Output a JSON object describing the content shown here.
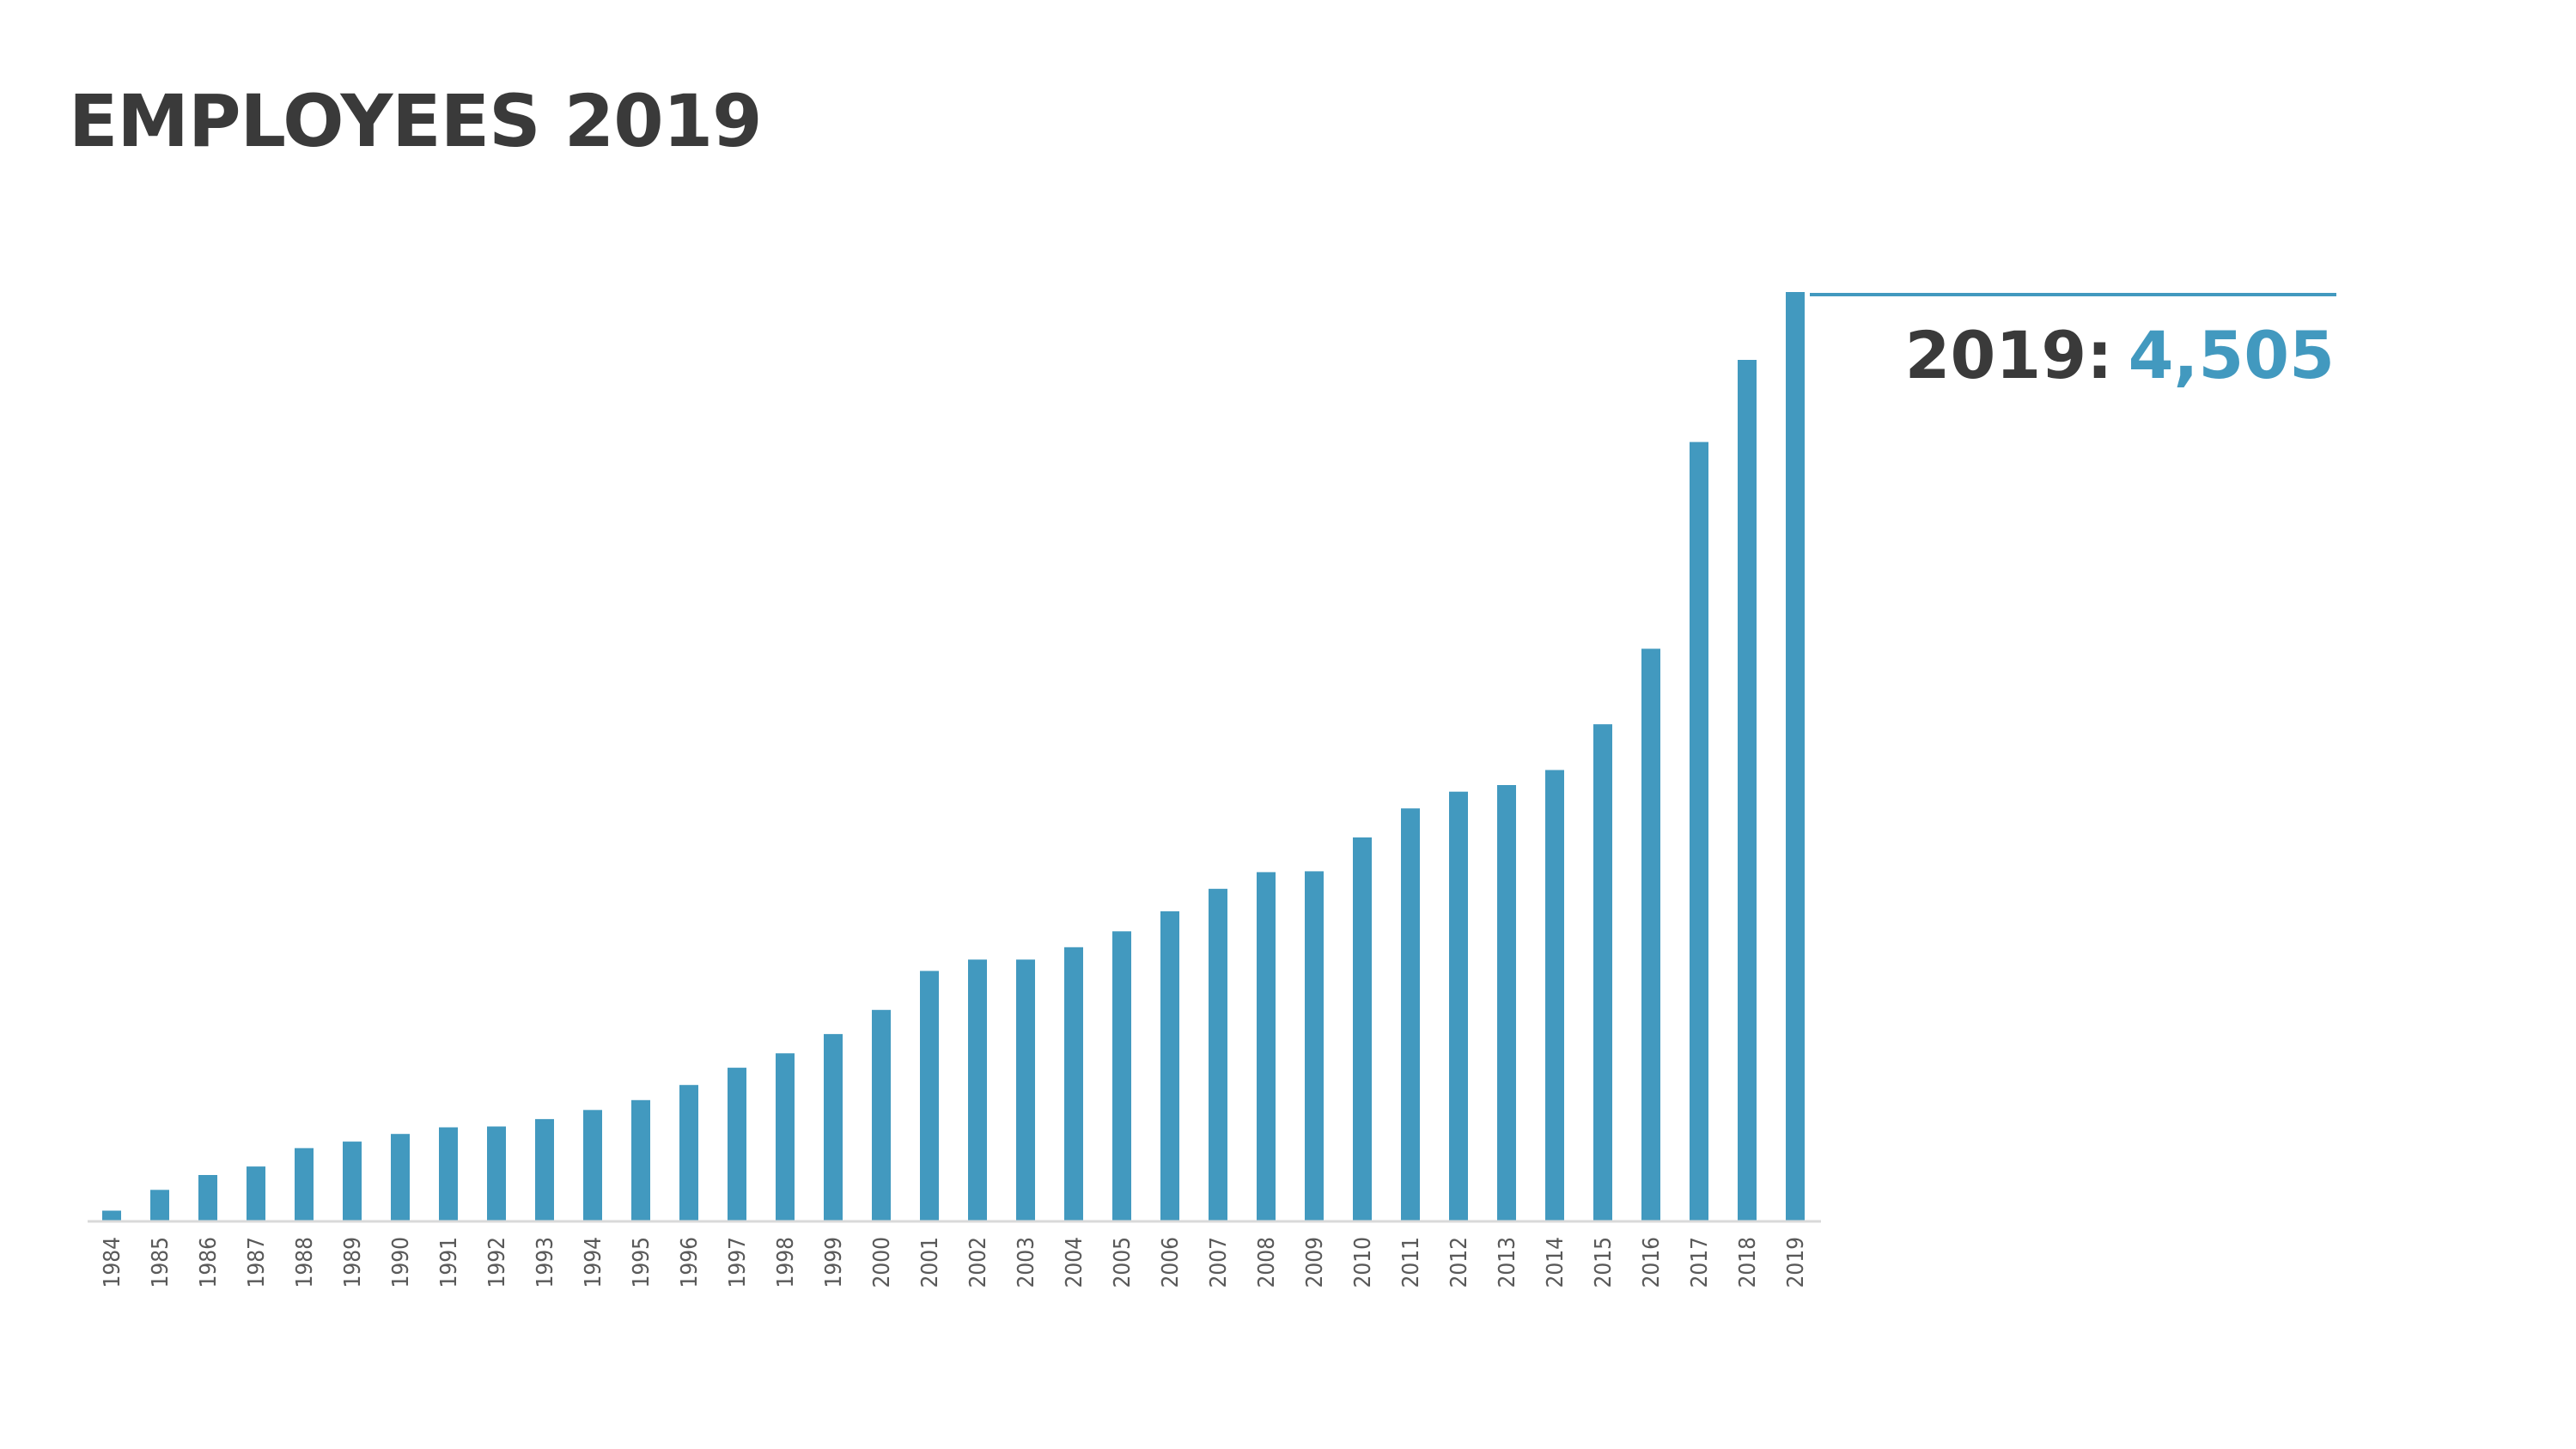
{
  "title": "EMPLOYEES 2019",
  "colors": {
    "bar": "#4299bf",
    "text": "#3a3a3a",
    "tick": "#595959",
    "axis": "#d9d9d9"
  },
  "callout": {
    "year_label": "2019:",
    "value_label": "4,505"
  },
  "chart_data": {
    "type": "bar",
    "title": "EMPLOYEES 2019",
    "xlabel": "",
    "ylabel": "",
    "ylim": [
      0,
      4505
    ],
    "grid": false,
    "legend": "none",
    "categories": [
      "1984",
      "1985",
      "1986",
      "1987",
      "1988",
      "1989",
      "1990",
      "1991",
      "1992",
      "1993",
      "1994",
      "1995",
      "1996",
      "1997",
      "1998",
      "1999",
      "2000",
      "2001",
      "2002",
      "2003",
      "2004",
      "2005",
      "2006",
      "2007",
      "2008",
      "2009",
      "2010",
      "2011",
      "2012",
      "2013",
      "2014",
      "2015",
      "2016",
      "2017",
      "2018",
      "2019"
    ],
    "values": [
      52,
      153,
      225,
      266,
      355,
      387,
      424,
      456,
      460,
      496,
      540,
      588,
      661,
      745,
      815,
      908,
      1025,
      1214,
      1269,
      1269,
      1329,
      1406,
      1503,
      1612,
      1693,
      1697,
      1861,
      2002,
      2083,
      2115,
      2188,
      2410,
      2776,
      3778,
      4176,
      4505
    ]
  }
}
